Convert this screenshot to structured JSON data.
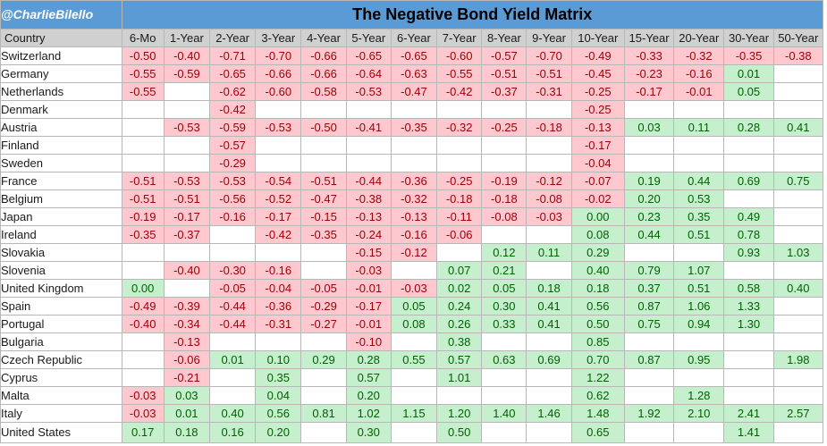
{
  "header": {
    "handle": "@CharlieBilello",
    "title": "The Negative Bond Yield Matrix"
  },
  "colors": {
    "title_bar": "#5b9bd5",
    "negative_fill": "#ffc7ce",
    "negative_text": "#9c0006",
    "positive_fill": "#c6efce",
    "positive_text": "#006100",
    "header_fill": "#d0d0d0"
  },
  "chart_data": {
    "type": "table",
    "title": "The Negative Bond Yield Matrix",
    "row_header_label": "Country",
    "columns": [
      "6-Mo",
      "1-Year",
      "2-Year",
      "3-Year",
      "4-Year",
      "5-Year",
      "6-Year",
      "7-Year",
      "8-Year",
      "9-Year",
      "10-Year",
      "15-Year",
      "20-Year",
      "30-Year",
      "50-Year"
    ],
    "rows": [
      {
        "country": "Switzerland",
        "values": [
          "-0.50",
          "-0.40",
          "-0.71",
          "-0.70",
          "-0.66",
          "-0.65",
          "-0.65",
          "-0.60",
          "-0.57",
          "-0.70",
          "-0.49",
          "-0.33",
          "-0.32",
          "-0.35",
          "-0.38"
        ]
      },
      {
        "country": "Germany",
        "values": [
          "-0.55",
          "-0.59",
          "-0.65",
          "-0.66",
          "-0.66",
          "-0.64",
          "-0.63",
          "-0.55",
          "-0.51",
          "-0.51",
          "-0.45",
          "-0.23",
          "-0.16",
          "0.01",
          ""
        ]
      },
      {
        "country": "Netherlands",
        "values": [
          "-0.55",
          "",
          "-0.62",
          "-0.60",
          "-0.58",
          "-0.53",
          "-0.47",
          "-0.42",
          "-0.37",
          "-0.31",
          "-0.25",
          "-0.17",
          "-0.01",
          "0.05",
          ""
        ]
      },
      {
        "country": "Denmark",
        "values": [
          "",
          "",
          "-0.42",
          "",
          "",
          "",
          "",
          "",
          "",
          "",
          "-0.25",
          "",
          "",
          "",
          ""
        ]
      },
      {
        "country": "Austria",
        "values": [
          "",
          "-0.53",
          "-0.59",
          "-0.53",
          "-0.50",
          "-0.41",
          "-0.35",
          "-0.32",
          "-0.25",
          "-0.18",
          "-0.13",
          "0.03",
          "0.11",
          "0.28",
          "0.41"
        ]
      },
      {
        "country": "Finland",
        "values": [
          "",
          "",
          "-0.57",
          "",
          "",
          "",
          "",
          "",
          "",
          "",
          "-0.17",
          "",
          "",
          "",
          ""
        ]
      },
      {
        "country": "Sweden",
        "values": [
          "",
          "",
          "-0.29",
          "",
          "",
          "",
          "",
          "",
          "",
          "",
          "-0.04",
          "",
          "",
          "",
          ""
        ]
      },
      {
        "country": "France",
        "values": [
          "-0.51",
          "-0.53",
          "-0.53",
          "-0.54",
          "-0.51",
          "-0.44",
          "-0.36",
          "-0.25",
          "-0.19",
          "-0.12",
          "-0.07",
          "0.19",
          "0.44",
          "0.69",
          "0.75"
        ]
      },
      {
        "country": "Belgium",
        "values": [
          "-0.51",
          "-0.51",
          "-0.56",
          "-0.52",
          "-0.47",
          "-0.38",
          "-0.32",
          "-0.18",
          "-0.18",
          "-0.08",
          "-0.02",
          "0.20",
          "0.53",
          "",
          ""
        ]
      },
      {
        "country": "Japan",
        "values": [
          "-0.19",
          "-0.17",
          "-0.16",
          "-0.17",
          "-0.15",
          "-0.13",
          "-0.13",
          "-0.11",
          "-0.08",
          "-0.03",
          "0.00",
          "0.23",
          "0.35",
          "0.49",
          ""
        ]
      },
      {
        "country": "Ireland",
        "values": [
          "-0.35",
          "-0.37",
          "",
          "-0.42",
          "-0.35",
          "-0.24",
          "-0.16",
          "-0.06",
          "",
          "",
          "0.08",
          "0.44",
          "0.51",
          "0.78",
          ""
        ]
      },
      {
        "country": "Slovakia",
        "values": [
          "",
          "",
          "",
          "",
          "",
          "-0.15",
          "-0.12",
          "",
          "0.12",
          "0.11",
          "0.29",
          "",
          "",
          "0.93",
          "1.03"
        ]
      },
      {
        "country": "Slovenia",
        "values": [
          "",
          "-0.40",
          "-0.30",
          "-0.16",
          "",
          "-0.03",
          "",
          "0.07",
          "0.21",
          "",
          "0.40",
          "0.79",
          "1.07",
          "",
          ""
        ]
      },
      {
        "country": "United Kingdom",
        "values": [
          "0.00",
          "",
          "-0.05",
          "-0.04",
          "-0.05",
          "-0.01",
          "-0.03",
          "0.02",
          "0.05",
          "0.18",
          "0.18",
          "0.37",
          "0.51",
          "0.58",
          "0.40"
        ]
      },
      {
        "country": "Spain",
        "values": [
          "-0.49",
          "-0.39",
          "-0.44",
          "-0.36",
          "-0.29",
          "-0.17",
          "0.05",
          "0.24",
          "0.30",
          "0.41",
          "0.56",
          "0.87",
          "1.06",
          "1.33",
          ""
        ]
      },
      {
        "country": "Portugal",
        "values": [
          "-0.40",
          "-0.34",
          "-0.44",
          "-0.31",
          "-0.27",
          "-0.01",
          "0.08",
          "0.26",
          "0.33",
          "0.41",
          "0.50",
          "0.75",
          "0.94",
          "1.30",
          ""
        ]
      },
      {
        "country": "Bulgaria",
        "values": [
          "",
          "-0.13",
          "",
          "",
          "",
          "-0.10",
          "",
          "0.38",
          "",
          "",
          "0.85",
          "",
          "",
          "",
          ""
        ]
      },
      {
        "country": "Czech Republic",
        "values": [
          "",
          "-0.06",
          "0.01",
          "0.10",
          "0.29",
          "0.28",
          "0.55",
          "0.57",
          "0.63",
          "0.69",
          "0.70",
          "0.87",
          "0.95",
          "",
          "1.98"
        ]
      },
      {
        "country": "Cyprus",
        "values": [
          "",
          "-0.21",
          "",
          "0.35",
          "",
          "0.57",
          "",
          "1.01",
          "",
          "",
          "1.22",
          "",
          "",
          "",
          ""
        ]
      },
      {
        "country": "Malta",
        "values": [
          "-0.03",
          "0.03",
          "",
          "0.04",
          "",
          "0.20",
          "",
          "",
          "",
          "",
          "0.62",
          "",
          "1.28",
          "",
          ""
        ]
      },
      {
        "country": "Italy",
        "values": [
          "-0.03",
          "0.01",
          "0.40",
          "0.56",
          "0.81",
          "1.02",
          "1.15",
          "1.20",
          "1.40",
          "1.46",
          "1.48",
          "1.92",
          "2.10",
          "2.41",
          "2.57"
        ]
      },
      {
        "country": "United States",
        "values": [
          "0.17",
          "0.18",
          "0.16",
          "0.20",
          "",
          "0.30",
          "",
          "0.50",
          "",
          "",
          "0.65",
          "",
          "",
          "1.41",
          ""
        ]
      }
    ]
  }
}
